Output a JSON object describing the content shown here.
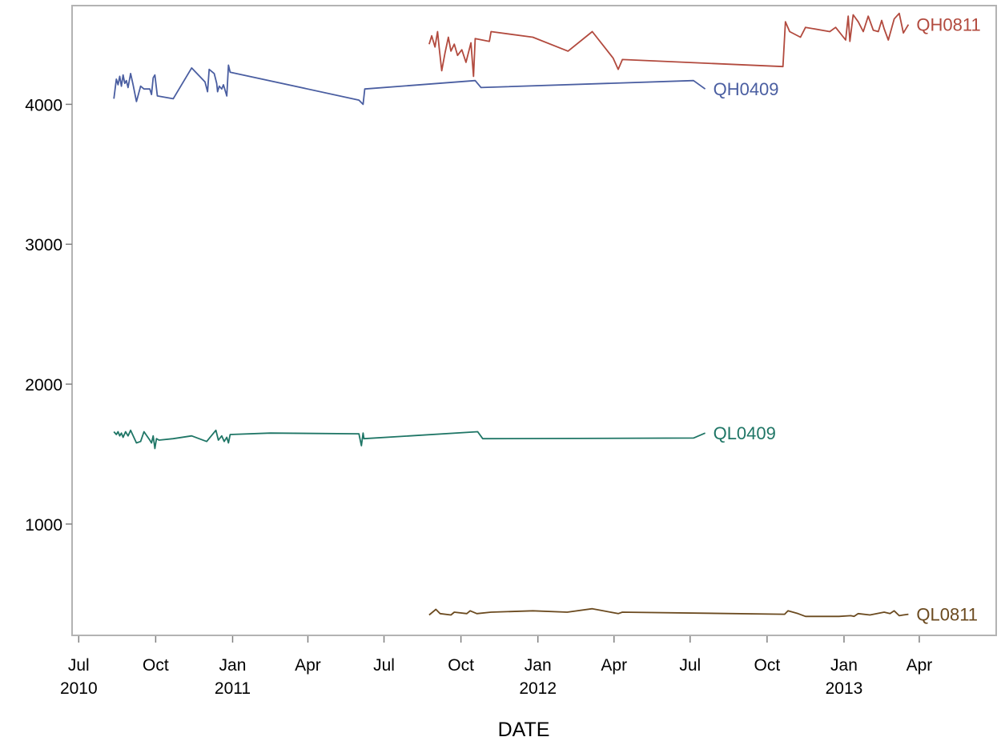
{
  "chart_data": {
    "type": "line",
    "title": "",
    "xlabel": "DATE",
    "ylabel": "",
    "xlim": [
      "2010-06-24",
      "2013-07-01"
    ],
    "ylim": [
      210,
      4700
    ],
    "grid": false,
    "legend": "none",
    "y_ticks": [
      {
        "value": 1000,
        "label": "1000"
      },
      {
        "value": 2000,
        "label": "2000"
      },
      {
        "value": 3000,
        "label": "3000"
      },
      {
        "value": 4000,
        "label": "4000"
      }
    ],
    "x_ticks": [
      {
        "date": "2010-07-01",
        "line1": "Jul",
        "line2": "2010"
      },
      {
        "date": "2010-10-01",
        "line1": "Oct",
        "line2": ""
      },
      {
        "date": "2011-01-01",
        "line1": "Jan",
        "line2": "2011"
      },
      {
        "date": "2011-04-01",
        "line1": "Apr",
        "line2": ""
      },
      {
        "date": "2011-07-01",
        "line1": "Jul",
        "line2": ""
      },
      {
        "date": "2011-10-01",
        "line1": "Oct",
        "line2": ""
      },
      {
        "date": "2012-01-01",
        "line1": "Jan",
        "line2": "2012"
      },
      {
        "date": "2012-04-01",
        "line1": "Apr",
        "line2": ""
      },
      {
        "date": "2012-07-01",
        "line1": "Jul",
        "line2": ""
      },
      {
        "date": "2012-10-01",
        "line1": "Oct",
        "line2": ""
      },
      {
        "date": "2013-01-01",
        "line1": "Jan",
        "line2": "2013"
      },
      {
        "date": "2013-04-01",
        "line1": "Apr",
        "line2": ""
      }
    ],
    "series": [
      {
        "name": "QH0409",
        "color": "#4a5ea1",
        "points": [
          [
            "2010-08-12",
            4040
          ],
          [
            "2010-08-15",
            4180
          ],
          [
            "2010-08-17",
            4140
          ],
          [
            "2010-08-19",
            4200
          ],
          [
            "2010-08-21",
            4130
          ],
          [
            "2010-08-23",
            4210
          ],
          [
            "2010-08-25",
            4150
          ],
          [
            "2010-08-27",
            4170
          ],
          [
            "2010-08-29",
            4120
          ],
          [
            "2010-09-01",
            4220
          ],
          [
            "2010-09-04",
            4140
          ],
          [
            "2010-09-08",
            4020
          ],
          [
            "2010-09-13",
            4130
          ],
          [
            "2010-09-17",
            4110
          ],
          [
            "2010-09-24",
            4110
          ],
          [
            "2010-09-26",
            4070
          ],
          [
            "2010-09-28",
            4190
          ],
          [
            "2010-09-30",
            4210
          ],
          [
            "2010-10-03",
            4060
          ],
          [
            "2010-10-22",
            4040
          ],
          [
            "2010-11-13",
            4260
          ],
          [
            "2010-11-29",
            4160
          ],
          [
            "2010-12-02",
            4090
          ],
          [
            "2010-12-04",
            4250
          ],
          [
            "2010-12-10",
            4220
          ],
          [
            "2010-12-13",
            4150
          ],
          [
            "2010-12-14",
            4090
          ],
          [
            "2010-12-16",
            4130
          ],
          [
            "2010-12-19",
            4110
          ],
          [
            "2010-12-21",
            4140
          ],
          [
            "2010-12-25",
            4060
          ],
          [
            "2010-12-27",
            4280
          ],
          [
            "2010-12-29",
            4230
          ],
          [
            "2011-06-01",
            4030
          ],
          [
            "2011-06-06",
            4000
          ],
          [
            "2011-06-08",
            4110
          ],
          [
            "2011-10-18",
            4170
          ],
          [
            "2011-10-25",
            4120
          ],
          [
            "2012-07-05",
            4170
          ],
          [
            "2012-07-19",
            4110
          ]
        ]
      },
      {
        "name": "QH0811",
        "color": "#b24a3e",
        "points": [
          [
            "2011-08-24",
            4430
          ],
          [
            "2011-08-27",
            4490
          ],
          [
            "2011-08-31",
            4410
          ],
          [
            "2011-09-03",
            4520
          ],
          [
            "2011-09-05",
            4400
          ],
          [
            "2011-09-08",
            4240
          ],
          [
            "2011-09-12",
            4370
          ],
          [
            "2011-09-16",
            4480
          ],
          [
            "2011-09-19",
            4380
          ],
          [
            "2011-09-23",
            4430
          ],
          [
            "2011-09-27",
            4350
          ],
          [
            "2011-10-02",
            4390
          ],
          [
            "2011-10-07",
            4300
          ],
          [
            "2011-10-13",
            4440
          ],
          [
            "2011-10-16",
            4200
          ],
          [
            "2011-10-18",
            4470
          ],
          [
            "2011-11-04",
            4450
          ],
          [
            "2011-11-06",
            4520
          ],
          [
            "2011-12-26",
            4480
          ],
          [
            "2012-02-06",
            4380
          ],
          [
            "2012-03-06",
            4520
          ],
          [
            "2012-03-31",
            4330
          ],
          [
            "2012-04-06",
            4250
          ],
          [
            "2012-04-11",
            4320
          ],
          [
            "2012-10-20",
            4270
          ],
          [
            "2012-10-23",
            4590
          ],
          [
            "2012-10-28",
            4520
          ],
          [
            "2012-11-10",
            4480
          ],
          [
            "2012-11-16",
            4550
          ],
          [
            "2012-12-15",
            4520
          ],
          [
            "2012-12-22",
            4550
          ],
          [
            "2013-01-03",
            4460
          ],
          [
            "2013-01-06",
            4630
          ],
          [
            "2013-01-08",
            4450
          ],
          [
            "2013-01-12",
            4640
          ],
          [
            "2013-01-18",
            4590
          ],
          [
            "2013-01-24",
            4520
          ],
          [
            "2013-01-30",
            4630
          ],
          [
            "2013-02-05",
            4530
          ],
          [
            "2013-02-11",
            4520
          ],
          [
            "2013-02-15",
            4600
          ],
          [
            "2013-02-18",
            4540
          ],
          [
            "2013-02-23",
            4460
          ],
          [
            "2013-03-02",
            4610
          ],
          [
            "2013-03-08",
            4650
          ],
          [
            "2013-03-13",
            4510
          ],
          [
            "2013-03-19",
            4570
          ]
        ]
      },
      {
        "name": "QL0409",
        "color": "#1f7666",
        "points": [
          [
            "2010-08-12",
            1660
          ],
          [
            "2010-08-15",
            1640
          ],
          [
            "2010-08-17",
            1660
          ],
          [
            "2010-08-19",
            1630
          ],
          [
            "2010-08-21",
            1650
          ],
          [
            "2010-08-23",
            1620
          ],
          [
            "2010-08-26",
            1660
          ],
          [
            "2010-08-29",
            1630
          ],
          [
            "2010-09-01",
            1670
          ],
          [
            "2010-09-08",
            1580
          ],
          [
            "2010-09-13",
            1590
          ],
          [
            "2010-09-17",
            1660
          ],
          [
            "2010-09-24",
            1600
          ],
          [
            "2010-09-26",
            1580
          ],
          [
            "2010-09-28",
            1630
          ],
          [
            "2010-09-30",
            1540
          ],
          [
            "2010-10-02",
            1610
          ],
          [
            "2010-10-05",
            1600
          ],
          [
            "2010-10-22",
            1610
          ],
          [
            "2010-11-13",
            1630
          ],
          [
            "2010-12-01",
            1590
          ],
          [
            "2010-12-12",
            1670
          ],
          [
            "2010-12-15",
            1600
          ],
          [
            "2010-12-19",
            1630
          ],
          [
            "2010-12-22",
            1590
          ],
          [
            "2010-12-25",
            1620
          ],
          [
            "2010-12-27",
            1580
          ],
          [
            "2010-12-29",
            1640
          ],
          [
            "2011-02-15",
            1650
          ],
          [
            "2011-06-01",
            1645
          ],
          [
            "2011-06-04",
            1560
          ],
          [
            "2011-06-06",
            1650
          ],
          [
            "2011-06-07",
            1610
          ],
          [
            "2011-10-21",
            1660
          ],
          [
            "2011-10-27",
            1610
          ],
          [
            "2012-07-05",
            1615
          ],
          [
            "2012-07-19",
            1650
          ]
        ]
      },
      {
        "name": "QL0811",
        "color": "#6b4a1f",
        "points": [
          [
            "2011-08-24",
            350
          ],
          [
            "2011-09-01",
            390
          ],
          [
            "2011-09-06",
            360
          ],
          [
            "2011-09-19",
            350
          ],
          [
            "2011-09-23",
            370
          ],
          [
            "2011-10-08",
            360
          ],
          [
            "2011-10-12",
            380
          ],
          [
            "2011-10-20",
            360
          ],
          [
            "2011-11-06",
            370
          ],
          [
            "2011-12-26",
            380
          ],
          [
            "2012-02-05",
            370
          ],
          [
            "2012-03-06",
            395
          ],
          [
            "2012-04-06",
            360
          ],
          [
            "2012-04-11",
            370
          ],
          [
            "2012-10-22",
            355
          ],
          [
            "2012-10-26",
            380
          ],
          [
            "2012-11-07",
            360
          ],
          [
            "2012-11-16",
            340
          ],
          [
            "2012-12-26",
            340
          ],
          [
            "2013-01-09",
            345
          ],
          [
            "2013-01-13",
            340
          ],
          [
            "2013-01-18",
            360
          ],
          [
            "2013-02-01",
            350
          ],
          [
            "2013-02-18",
            370
          ],
          [
            "2013-02-25",
            360
          ],
          [
            "2013-03-02",
            380
          ],
          [
            "2013-03-08",
            345
          ],
          [
            "2013-03-13",
            350
          ],
          [
            "2013-03-19",
            355
          ]
        ]
      }
    ]
  }
}
